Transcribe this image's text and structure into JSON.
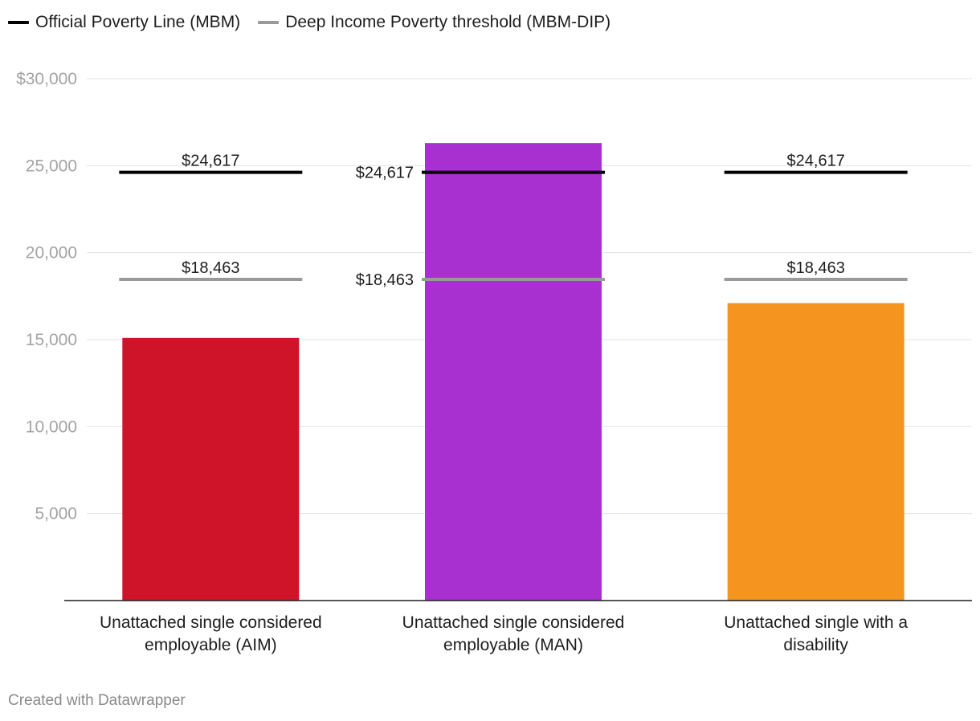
{
  "legend": [
    {
      "label": "Official Poverty Line (MBM)",
      "color": "#000000"
    },
    {
      "label": "Deep Income Poverty threshold (MBM-DIP)",
      "color": "#9a9a9a"
    }
  ],
  "footer": "Created with Datawrapper",
  "chart_data": {
    "type": "bar",
    "categories": [
      [
        "Unattached single considered",
        "employable (AIM)"
      ],
      [
        "Unattached single considered",
        "employable (MAN)"
      ],
      [
        "Unattached single with a",
        "disability"
      ]
    ],
    "values": [
      15100,
      26300,
      17100
    ],
    "bar_colors": [
      "#cf1429",
      "#a830d1",
      "#f5941e"
    ],
    "reference_lines": [
      {
        "name": "Official Poverty Line (MBM)",
        "color": "#000000",
        "value": 24617,
        "labels": [
          "$24,617",
          "$24,617",
          "$24,617"
        ]
      },
      {
        "name": "Deep Income Poverty threshold (MBM-DIP)",
        "color": "#9a9a9a",
        "value": 18463,
        "labels": [
          "$18,463",
          "$18,463",
          "$18,463"
        ]
      }
    ],
    "yticks": [
      {
        "value": 30000,
        "label": "$30,000"
      },
      {
        "value": 25000,
        "label": "25,000"
      },
      {
        "value": 20000,
        "label": "20,000"
      },
      {
        "value": 15000,
        "label": "15,000"
      },
      {
        "value": 10000,
        "label": "10,000"
      },
      {
        "value": 5000,
        "label": "5,000"
      }
    ],
    "ylim": [
      0,
      30000
    ],
    "grid": true,
    "legend_position": "top-left"
  }
}
